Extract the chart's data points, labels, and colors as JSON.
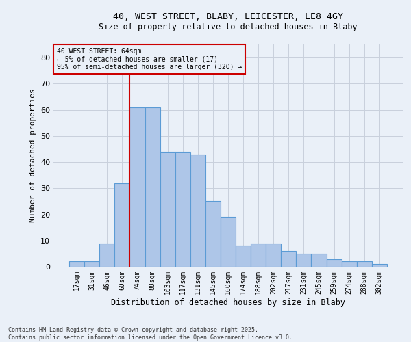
{
  "title1": "40, WEST STREET, BLABY, LEICESTER, LE8 4GY",
  "title2": "Size of property relative to detached houses in Blaby",
  "xlabel": "Distribution of detached houses by size in Blaby",
  "ylabel": "Number of detached properties",
  "bar_labels": [
    "17sqm",
    "31sqm",
    "46sqm",
    "60sqm",
    "74sqm",
    "88sqm",
    "103sqm",
    "117sqm",
    "131sqm",
    "145sqm",
    "160sqm",
    "174sqm",
    "188sqm",
    "202sqm",
    "217sqm",
    "231sqm",
    "245sqm",
    "259sqm",
    "274sqm",
    "288sqm",
    "302sqm"
  ],
  "bar_values": [
    2,
    2,
    9,
    32,
    61,
    61,
    44,
    44,
    43,
    25,
    19,
    8,
    9,
    9,
    6,
    5,
    5,
    3,
    2,
    2,
    1
  ],
  "bar_color": "#aec6e8",
  "bar_edge_color": "#5b9bd5",
  "grid_color": "#c8d0dc",
  "bg_color": "#eaf0f8",
  "vline_x": 3.5,
  "vline_color": "#cc0000",
  "annotation_text": "40 WEST STREET: 64sqm\n← 5% of detached houses are smaller (17)\n95% of semi-detached houses are larger (320) →",
  "annotation_box_color": "#cc0000",
  "footnote": "Contains HM Land Registry data © Crown copyright and database right 2025.\nContains public sector information licensed under the Open Government Licence v3.0.",
  "ylim": [
    0,
    85
  ],
  "yticks": [
    0,
    10,
    20,
    30,
    40,
    50,
    60,
    70,
    80
  ]
}
